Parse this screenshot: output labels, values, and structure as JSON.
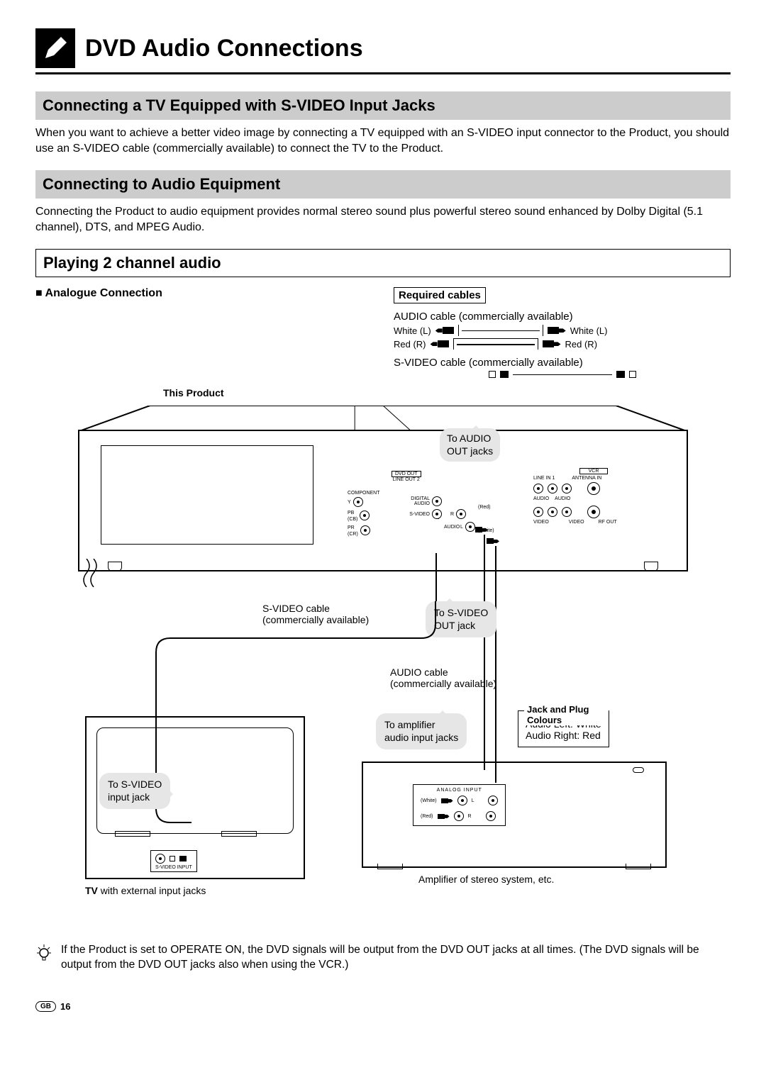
{
  "page": {
    "title": "DVD Audio Connections",
    "region_code": "GB",
    "page_number": "16"
  },
  "section1": {
    "heading": "Connecting a TV Equipped with S-VIDEO Input Jacks",
    "body": "When you want to achieve a better video image by connecting a TV equipped with an S-VIDEO input connector to the Product, you should use an S-VIDEO cable (commercially available) to connect the TV to the Product."
  },
  "section2": {
    "heading": "Connecting to Audio Equipment",
    "body": "Connecting the Product to audio equipment provides normal stereo sound plus powerful stereo sound enhanced by Dolby Digital (5.1 channel), DTS, and MPEG Audio."
  },
  "section3": {
    "heading": "Playing 2 channel audio",
    "analogue_label": "■ Analogue Connection",
    "required_label": "Required cables",
    "audio_cable": "AUDIO cable (commercially available)",
    "svideo_cable": "S-VIDEO cable (commercially available)",
    "colors": {
      "white_l": "White (L)",
      "red_r": "Red (R)"
    },
    "this_product": "This Product"
  },
  "panel": {
    "dvd_out": "DVD OUT",
    "line_out2": "LINE OUT 2",
    "component": "COMPONENT",
    "y": "Y",
    "pb": "PB",
    "pb_sub": "(CB)",
    "pr": "PR",
    "pr_sub": "(CR)",
    "digital_audio": "DIGITAL AUDIO",
    "s_video": "S-VIDEO",
    "audio": "AUDIO",
    "r": "R",
    "l": "L",
    "red": "(Red)",
    "white": "(White)",
    "vcr": "VCR",
    "line_in1": "LINE IN 1",
    "antenna_in": "ANTENNA IN",
    "rf_out": "RF OUT",
    "audio_up": "AUDIO",
    "video": "VIDEO"
  },
  "callouts": {
    "to_audio_out": "To AUDIO OUT jacks",
    "svideo_cable": "S-VIDEO cable (commercially available)",
    "to_svideo_out": "To S-VIDEO OUT jack",
    "audio_cable": "AUDIO cable (commercially available)",
    "to_amp": "To amplifier audio input jacks",
    "to_svideo_in": "To S-VIDEO input jack"
  },
  "jack_colours": {
    "title": "Jack and Plug Colours",
    "left": "Audio Left: White",
    "right": "Audio Right: Red"
  },
  "tv": {
    "svideo_input": "S-VIDEO INPUT",
    "caption_bold": "TV",
    "caption_rest": " with external input jacks"
  },
  "amp": {
    "analog_input": "ANALOG INPUT",
    "l": "L",
    "r": "R",
    "white": "(White)",
    "red": "(Red)",
    "caption": "Amplifier of stereo system, etc."
  },
  "note": {
    "text": "If the Product is set to OPERATE ON, the DVD signals will be output from the DVD OUT jacks at all times. (The DVD signals will be output from the DVD OUT jacks also when using the VCR.)"
  },
  "colors": {
    "text": "#000000",
    "bg": "#ffffff",
    "bar_bg": "#cccccc",
    "callout_bg": "#e6e6e6"
  }
}
